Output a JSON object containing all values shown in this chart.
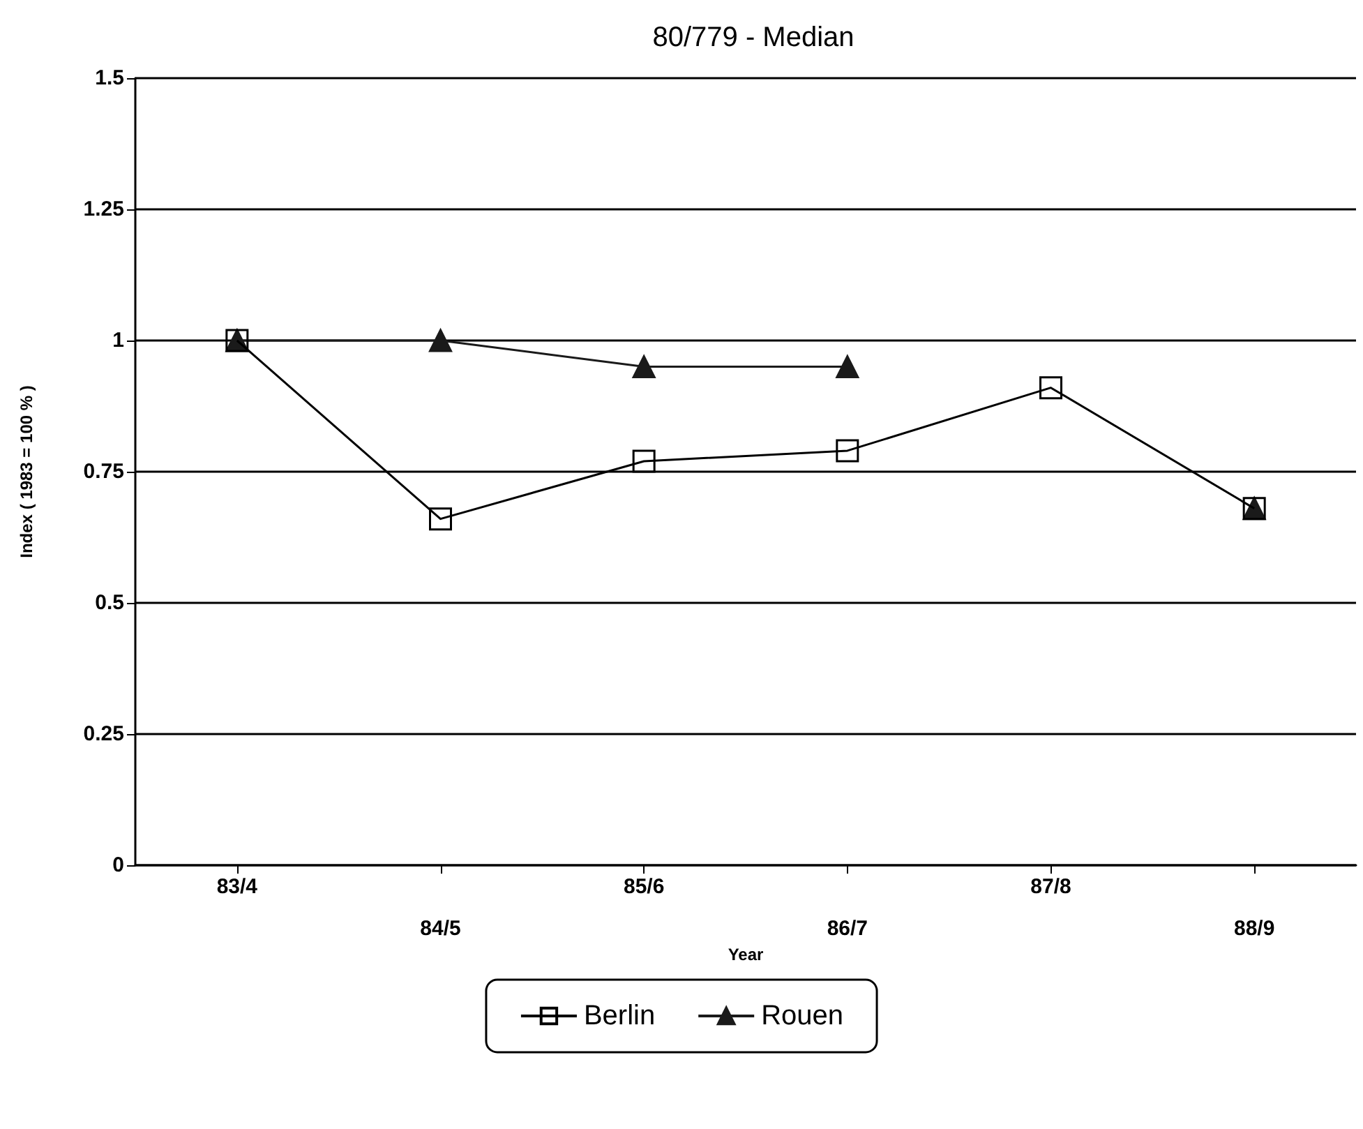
{
  "chart_data": {
    "type": "line",
    "title": "80/779 - Median",
    "xlabel": "Year",
    "ylabel": "Index ( 1983 = 100 % )",
    "categories": [
      "83/4",
      "84/5",
      "85/6",
      "86/7",
      "87/8",
      "88/9"
    ],
    "series": [
      {
        "name": "Berlin",
        "color": "#000000",
        "marker": "square",
        "values": [
          1,
          0.66,
          0.77,
          0.79,
          0.91,
          0.68
        ]
      },
      {
        "name": "Rouen",
        "color": "#1a1a1a",
        "marker": "triangle",
        "values": [
          1,
          1,
          0.95,
          0.95,
          null,
          0.68
        ]
      }
    ],
    "ylim": [
      0,
      1.5
    ],
    "yticks": [
      0,
      0.25,
      0.5,
      0.75,
      1,
      1.25,
      1.5
    ],
    "grid": "y",
    "legend": "bottom",
    "line_style": "solid"
  }
}
